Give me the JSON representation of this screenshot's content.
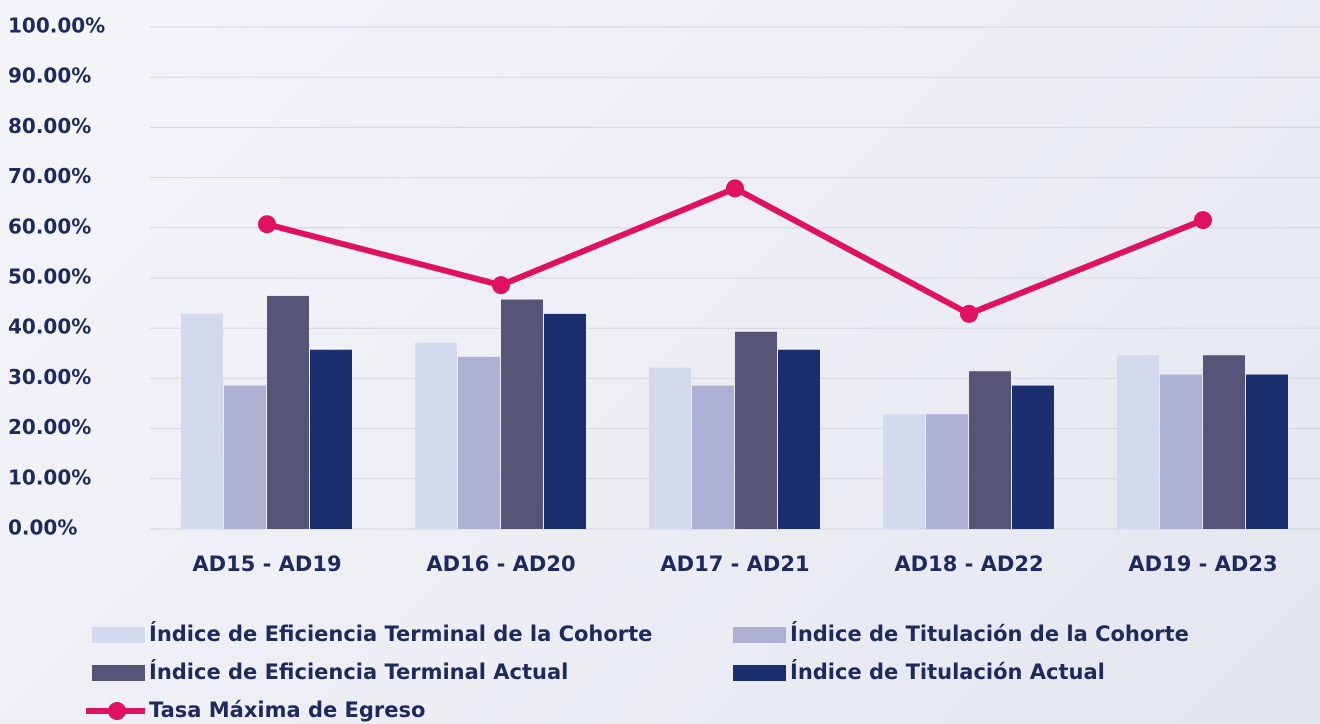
{
  "chart_data": {
    "type": "bar",
    "categories": [
      "AD15 - AD19",
      "AD16 - AD20",
      "AD17 - AD21",
      "AD18 - AD22",
      "AD19 - AD23"
    ],
    "ylim": [
      0,
      100
    ],
    "yticks": [
      {
        "value": 0,
        "label": "0.00%"
      },
      {
        "value": 10,
        "label": "10.00%"
      },
      {
        "value": 20,
        "label": "20.00%"
      },
      {
        "value": 30,
        "label": "30.00%"
      },
      {
        "value": 40,
        "label": "40.00%"
      },
      {
        "value": 50,
        "label": "50.00%"
      },
      {
        "value": 60,
        "label": "60.00%"
      },
      {
        "value": 70,
        "label": "70.00%"
      },
      {
        "value": 80,
        "label": "80.00%"
      },
      {
        "value": 90,
        "label": "90.00%"
      },
      {
        "value": 100,
        "label": "100.00%"
      }
    ],
    "grid": true,
    "series": [
      {
        "name": "Índice de Eficiencia Terminal de la Cohorte",
        "type": "bar",
        "color": "#d3daee",
        "values": [
          42.86,
          37.14,
          32.14,
          22.86,
          34.62
        ]
      },
      {
        "name": "Índice de Titulación de la Cohorte",
        "type": "bar",
        "color": "#aeb0d3",
        "values": [
          28.57,
          34.29,
          28.57,
          22.86,
          30.77
        ]
      },
      {
        "name": "Índice de Eficiencia Terminal Actual",
        "type": "bar",
        "color": "#565577",
        "values": [
          46.43,
          45.71,
          39.29,
          31.43,
          34.62
        ]
      },
      {
        "name": "Índice de Titulación Actual",
        "type": "bar",
        "color": "#1b2f6e",
        "values": [
          35.71,
          42.86,
          35.71,
          28.57,
          30.77
        ]
      },
      {
        "name": "Tasa Máxima de Egreso",
        "type": "line",
        "color": "#e0115f",
        "values": [
          60.71,
          48.57,
          67.86,
          42.86,
          61.54
        ]
      }
    ]
  }
}
